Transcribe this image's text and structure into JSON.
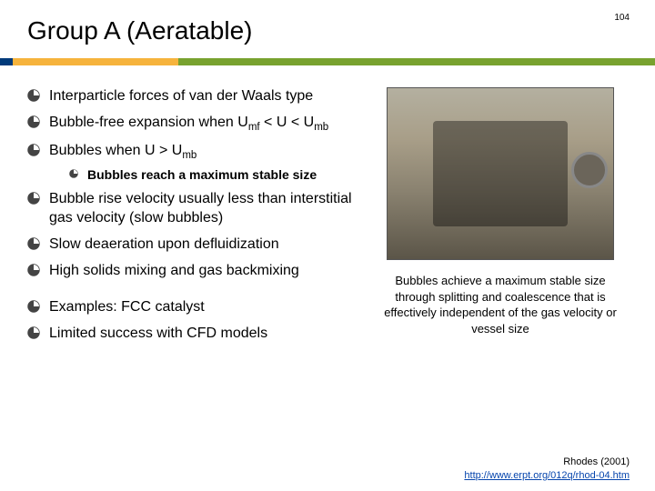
{
  "page_number": "104",
  "title": "Group A (Aeratable)",
  "accent_colors": {
    "blue": "#003a7a",
    "yellow": "#f6b33c",
    "green": "#78a22f"
  },
  "bullets": [
    {
      "html": "Interparticle forces of van der Waals type"
    },
    {
      "html": "Bubble-free expansion when U<sub>mf</sub> &lt; U &lt; U<sub>mb</sub>"
    },
    {
      "html": "Bubbles when U &gt; U<sub>mb</sub>",
      "sub": [
        {
          "html": "Bubbles reach a maximum stable size"
        }
      ]
    },
    {
      "html": "Bubble rise velocity usually less than interstitial gas velocity (slow bubbles)"
    },
    {
      "html": "Slow deaeration upon defluidization"
    },
    {
      "html": "High solids mixing and gas backmixing"
    },
    {
      "gap": true
    },
    {
      "html": "Examples: FCC catalyst"
    },
    {
      "html": "Limited success with CFD models"
    }
  ],
  "caption": "Bubbles achieve a maximum stable size through splitting and coalescence that is effectively independent of the gas velocity or vessel size",
  "citation_text": "Rhodes (2001)",
  "citation_url_text": "http://www.erpt.org/012q/rhod-04.htm"
}
